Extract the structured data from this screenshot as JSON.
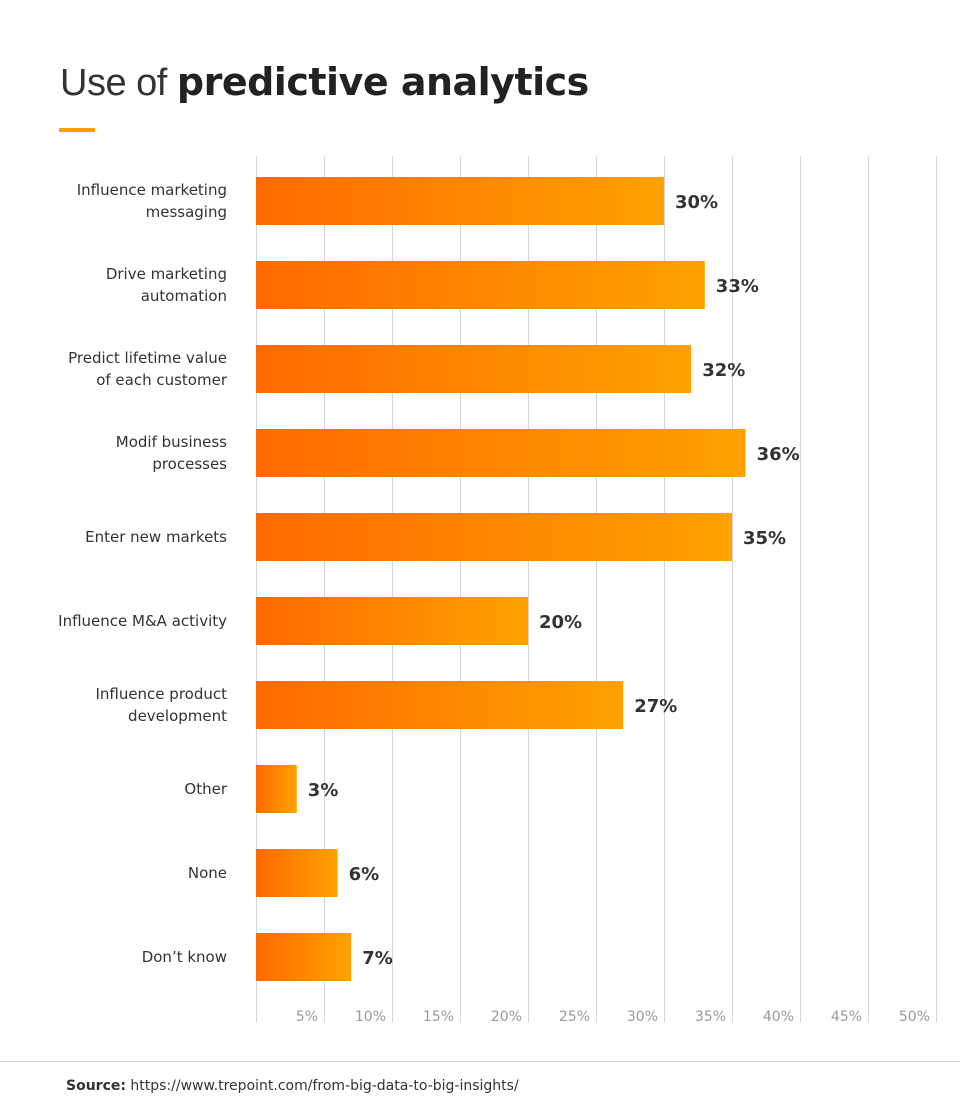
{
  "title": {
    "light": "Use of ",
    "bold": "predictive analytics"
  },
  "colors": {
    "accent": "#ffa000",
    "bar_start": "#ff6a00",
    "bar_end": "#ffa200",
    "grid": "#cfd8e0"
  },
  "chart_data": {
    "type": "bar",
    "orientation": "horizontal",
    "title": "Use of predictive analytics",
    "categories": [
      [
        "Influence marketing",
        "messaging"
      ],
      [
        "Drive marketing",
        "automation"
      ],
      [
        "Predict lifetime value",
        "of each customer"
      ],
      [
        "Modif business",
        "processes"
      ],
      [
        "Enter new markets"
      ],
      [
        "Influence M&A activity"
      ],
      [
        "Influence product",
        "development"
      ],
      [
        "Other"
      ],
      [
        "None"
      ],
      [
        "Don’t know"
      ]
    ],
    "values": [
      30,
      33,
      32,
      36,
      35,
      20,
      27,
      3,
      6,
      7
    ],
    "value_labels": [
      "30%",
      "33%",
      "32%",
      "36%",
      "35%",
      "20%",
      "27%",
      "3%",
      "6%",
      "7%"
    ],
    "xlabel": "",
    "ylabel": "",
    "xlim": [
      0,
      50
    ],
    "xticks": [
      5,
      10,
      15,
      20,
      25,
      30,
      35,
      40,
      45,
      50
    ],
    "xtick_labels": [
      "5%",
      "10%",
      "15%",
      "20%",
      "25%",
      "30%",
      "35%",
      "40%",
      "45%",
      "50%"
    ],
    "grid": true,
    "legend": "none"
  },
  "source": {
    "label": "Source:",
    "url": "https://www.trepoint.com/from-big-data-to-big-insights/"
  }
}
